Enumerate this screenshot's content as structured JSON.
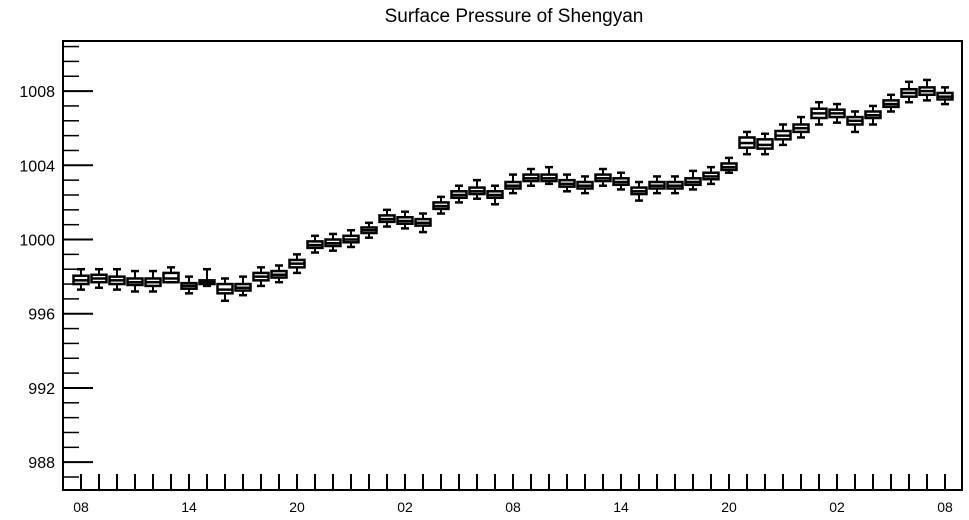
{
  "chart_data": {
    "type": "boxplot",
    "title": "Surface Pressure of Shengyan",
    "xlabel": "",
    "ylabel": "",
    "ylim": [
      986.5,
      1010.7
    ],
    "y_major_ticks": [
      988,
      992,
      996,
      1000,
      1004,
      1008
    ],
    "y_minor_step": 0.8,
    "x_tick_labels": [
      "08",
      "14",
      "20",
      "02",
      "08",
      "14",
      "20",
      "02",
      "08"
    ],
    "x_label_every": 6,
    "x_step_hours": 1,
    "n_steps": 49,
    "grid": false,
    "legend": "none",
    "box_color": "#000000",
    "series": [
      {
        "medians": [
          997.8,
          997.9,
          997.8,
          997.7,
          997.7,
          997.9,
          997.5,
          997.7,
          997.3,
          997.4,
          998.0,
          998.1,
          998.7,
          999.7,
          999.8,
          1000.0,
          1000.5,
          1001.1,
          1001.0,
          1000.9,
          1001.8,
          1002.4,
          1002.6,
          1002.4,
          1002.9,
          1003.3,
          1003.3,
          1003.0,
          1002.9,
          1003.3,
          1003.1,
          1002.6,
          1002.9,
          1002.9,
          1003.1,
          1003.4,
          1003.9,
          1005.2,
          1005.1,
          1005.6,
          1006.0,
          1006.8,
          1006.8,
          1006.4,
          1006.7,
          1007.3,
          1007.9,
          1008.0,
          1007.7
        ],
        "q1": [
          997.6,
          997.7,
          997.6,
          997.55,
          997.5,
          997.7,
          997.35,
          997.6,
          997.1,
          997.25,
          997.8,
          997.95,
          998.5,
          999.55,
          999.65,
          999.85,
          1000.35,
          1000.95,
          1000.85,
          1000.75,
          1001.65,
          1002.25,
          1002.45,
          1002.25,
          1002.75,
          1003.15,
          1003.15,
          1002.85,
          1002.75,
          1003.15,
          1002.95,
          1002.45,
          1002.75,
          1002.75,
          1002.95,
          1003.25,
          1003.75,
          1004.95,
          1004.9,
          1005.4,
          1005.8,
          1006.55,
          1006.6,
          1006.2,
          1006.55,
          1007.15,
          1007.7,
          1007.8,
          1007.55
        ],
        "q3": [
          998.05,
          998.1,
          998.0,
          997.9,
          997.9,
          998.2,
          997.65,
          997.8,
          997.6,
          997.6,
          998.2,
          998.3,
          998.9,
          999.9,
          1000.0,
          1000.2,
          1000.65,
          1001.3,
          1001.2,
          1001.1,
          1002.0,
          1002.6,
          1002.8,
          1002.6,
          1003.1,
          1003.5,
          1003.5,
          1003.2,
          1003.1,
          1003.5,
          1003.3,
          1002.8,
          1003.1,
          1003.1,
          1003.3,
          1003.6,
          1004.1,
          1005.5,
          1005.4,
          1005.85,
          1006.2,
          1007.05,
          1007.0,
          1006.6,
          1006.9,
          1007.5,
          1008.1,
          1008.2,
          1007.9
        ],
        "whisker_low": [
          997.3,
          997.4,
          997.3,
          997.2,
          997.2,
          997.7,
          997.1,
          997.5,
          996.7,
          997.0,
          997.5,
          997.7,
          998.2,
          999.3,
          999.4,
          999.6,
          1000.1,
          1000.7,
          1000.6,
          1000.4,
          1001.4,
          1002.0,
          1002.2,
          1001.9,
          1002.5,
          1002.9,
          1003.0,
          1002.6,
          1002.5,
          1002.9,
          1002.7,
          1002.1,
          1002.5,
          1002.5,
          1002.7,
          1003.0,
          1003.6,
          1004.6,
          1004.6,
          1005.1,
          1005.5,
          1006.2,
          1006.3,
          1005.8,
          1006.2,
          1006.9,
          1007.4,
          1007.5,
          1007.3
        ],
        "whisker_high": [
          998.4,
          998.4,
          998.4,
          998.3,
          998.3,
          998.5,
          998.0,
          998.4,
          997.9,
          998.0,
          998.5,
          998.6,
          999.2,
          1000.2,
          1000.3,
          1000.5,
          1000.9,
          1001.6,
          1001.5,
          1001.4,
          1002.3,
          1002.9,
          1003.2,
          1002.9,
          1003.5,
          1003.8,
          1003.9,
          1003.5,
          1003.4,
          1003.8,
          1003.6,
          1003.1,
          1003.4,
          1003.4,
          1003.7,
          1003.9,
          1004.4,
          1005.8,
          1005.7,
          1006.2,
          1006.6,
          1007.4,
          1007.3,
          1006.9,
          1007.2,
          1007.8,
          1008.5,
          1008.6,
          1008.2
        ]
      }
    ]
  }
}
